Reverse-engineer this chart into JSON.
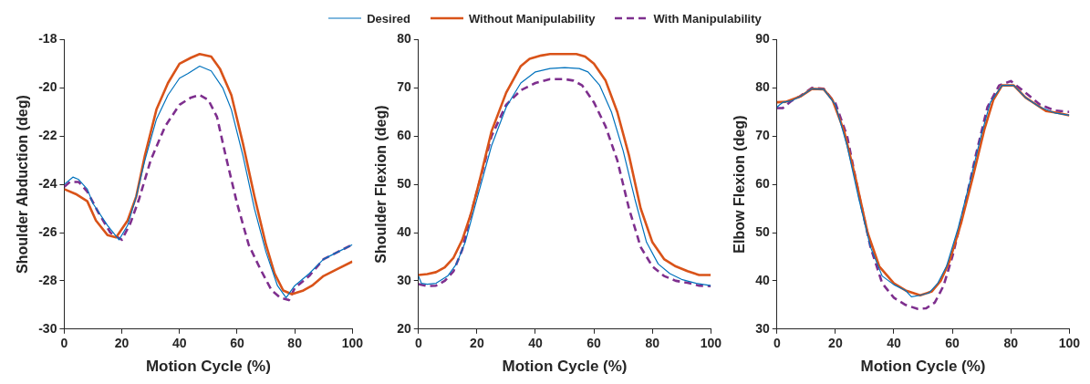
{
  "chart_data": [
    {
      "type": "line",
      "legend": "top",
      "grid": false,
      "xlabel": "Motion Cycle (%)",
      "ylabel": "Shoulder Abduction (deg)",
      "xlim": [
        0,
        100
      ],
      "xticks": [
        0,
        20,
        40,
        60,
        80,
        100
      ],
      "ylim": [
        -30,
        -18
      ],
      "yticks": [
        -30,
        -28,
        -26,
        -24,
        -22,
        -20,
        -18
      ],
      "series": [
        {
          "name": "Desired",
          "color": "#0072bd",
          "line_style": "solid",
          "x": [
            0,
            3,
            5,
            8,
            10,
            15,
            19,
            22,
            25,
            28,
            32,
            36,
            40,
            43,
            47,
            51,
            55,
            58,
            62,
            66,
            70,
            74,
            77,
            80,
            85,
            90,
            95,
            100
          ],
          "values": [
            -24.0,
            -23.7,
            -23.8,
            -24.2,
            -24.8,
            -25.7,
            -26.3,
            -25.7,
            -24.5,
            -23.0,
            -21.3,
            -20.3,
            -19.6,
            -19.4,
            -19.1,
            -19.3,
            -20.0,
            -20.9,
            -22.8,
            -25.0,
            -26.8,
            -28.2,
            -28.7,
            -28.2,
            -27.7,
            -27.1,
            -26.8,
            -26.5
          ]
        },
        {
          "name": "Without Manipulability",
          "color": "#d95319",
          "line_style": "solid",
          "x": [
            0,
            4,
            8,
            11,
            15,
            18,
            22,
            25,
            28,
            32,
            36,
            40,
            44,
            47,
            51,
            54,
            58,
            62,
            66,
            70,
            73,
            76,
            79,
            83,
            86,
            90,
            95,
            100
          ],
          "values": [
            -24.2,
            -24.4,
            -24.7,
            -25.5,
            -26.1,
            -26.2,
            -25.5,
            -24.5,
            -22.8,
            -20.9,
            -19.8,
            -19.0,
            -18.75,
            -18.6,
            -18.7,
            -19.2,
            -20.3,
            -22.3,
            -24.5,
            -26.5,
            -27.7,
            -28.4,
            -28.55,
            -28.4,
            -28.2,
            -27.8,
            -27.5,
            -27.2
          ]
        },
        {
          "name": "With Manipulability",
          "color": "#7e2f8e",
          "line_style": "dashed",
          "x": [
            0,
            2,
            5,
            8,
            12,
            16,
            20,
            23,
            26,
            30,
            35,
            40,
            44,
            47,
            50,
            53,
            56,
            60,
            64,
            68,
            72,
            75,
            78,
            80,
            85,
            90,
            95,
            100
          ],
          "values": [
            -24.1,
            -23.9,
            -23.9,
            -24.3,
            -25.2,
            -26.0,
            -26.3,
            -25.6,
            -24.6,
            -23.0,
            -21.6,
            -20.7,
            -20.4,
            -20.3,
            -20.5,
            -21.2,
            -22.8,
            -24.8,
            -26.5,
            -27.5,
            -28.4,
            -28.7,
            -28.8,
            -28.3,
            -27.8,
            -27.1,
            -26.8,
            -26.5
          ]
        }
      ]
    },
    {
      "type": "line",
      "grid": false,
      "xlabel": "Motion Cycle (%)",
      "ylabel": "Shoulder Flexion (deg)",
      "xlim": [
        0,
        100
      ],
      "xticks": [
        0,
        20,
        40,
        60,
        80,
        100
      ],
      "ylim": [
        20,
        80
      ],
      "yticks": [
        20,
        30,
        40,
        50,
        60,
        70,
        80
      ],
      "series": [
        {
          "color": "#0072bd",
          "line_style": "solid",
          "x": [
            0,
            1,
            3,
            6,
            10,
            13,
            16,
            20,
            25,
            30,
            35,
            40,
            45,
            50,
            55,
            58,
            62,
            66,
            70,
            74,
            78,
            82,
            86,
            90,
            95,
            100
          ],
          "values": [
            31.0,
            29.5,
            29.3,
            29.5,
            31.0,
            33.5,
            38,
            47,
            58,
            66,
            71,
            73.3,
            74,
            74.2,
            74,
            73.3,
            70.5,
            65,
            57,
            47,
            38,
            33.5,
            31.5,
            30.3,
            29.5,
            29.0
          ]
        },
        {
          "color": "#d95319",
          "line_style": "solid",
          "x": [
            0,
            3,
            6,
            9,
            12,
            15,
            18,
            21,
            25,
            30,
            35,
            38,
            42,
            45,
            50,
            54,
            57,
            60,
            64,
            68,
            72,
            76,
            80,
            84,
            88,
            92,
            96,
            100
          ],
          "values": [
            31.2,
            31.4,
            31.8,
            32.8,
            34.8,
            38.5,
            44,
            51,
            61,
            69,
            74.5,
            76,
            76.7,
            77,
            77,
            77,
            76.5,
            75,
            71.5,
            65,
            56,
            45,
            38,
            34.5,
            33,
            32,
            31.2,
            31.2
          ]
        },
        {
          "color": "#7e2f8e",
          "line_style": "dashed",
          "x": [
            0,
            3,
            6,
            9,
            12,
            15,
            18,
            22,
            25,
            30,
            35,
            40,
            45,
            50,
            53,
            56,
            60,
            64,
            68,
            72,
            76,
            80,
            84,
            88,
            92,
            96,
            100
          ],
          "values": [
            29.3,
            28.9,
            29,
            30,
            32,
            36.5,
            44,
            53,
            60,
            66.5,
            69.5,
            71,
            71.8,
            71.8,
            71.5,
            70.5,
            67,
            62,
            55,
            45,
            37,
            33,
            31,
            30,
            29.6,
            29,
            28.9
          ]
        }
      ]
    },
    {
      "type": "line",
      "grid": false,
      "xlabel": "Motion Cycle (%)",
      "ylabel": "Elbow Flexion (deg)",
      "xlim": [
        0,
        100
      ],
      "xticks": [
        0,
        20,
        40,
        60,
        80,
        100
      ],
      "ylim": [
        30,
        90
      ],
      "yticks": [
        30,
        40,
        50,
        60,
        70,
        80,
        90
      ],
      "series": [
        {
          "color": "#0072bd",
          "line_style": "solid",
          "x": [
            0,
            1,
            2,
            5,
            8,
            12,
            16,
            20,
            24,
            28,
            32,
            36,
            40,
            44,
            46,
            49,
            52,
            55,
            58,
            62,
            66,
            70,
            73,
            77,
            81,
            85,
            90,
            95,
            100
          ],
          "values": [
            76,
            76.5,
            77,
            77.3,
            78.2,
            79.8,
            79.7,
            76.5,
            68,
            57,
            47,
            41,
            39.2,
            38,
            36.7,
            37,
            37.5,
            39.5,
            43,
            51,
            60.5,
            70.5,
            77,
            80.5,
            80.5,
            78,
            76,
            74.8,
            74.3
          ]
        },
        {
          "color": "#d95319",
          "line_style": "solid",
          "x": [
            0,
            3,
            8,
            12,
            16,
            19,
            23,
            27,
            31,
            35,
            40,
            44,
            49,
            53,
            56,
            59,
            63,
            67,
            71,
            74,
            77,
            81,
            85,
            88,
            92,
            96,
            100
          ],
          "values": [
            77,
            77.1,
            78.2,
            79.8,
            79.7,
            77.5,
            71,
            61,
            50,
            43,
            39.5,
            38,
            37,
            37.8,
            40,
            44,
            52,
            61.5,
            71.5,
            77.5,
            80.5,
            80.5,
            78,
            76.8,
            75.2,
            74.8,
            74.3
          ]
        },
        {
          "color": "#7e2f8e",
          "line_style": "dashed",
          "x": [
            0,
            2,
            5,
            8,
            12,
            16,
            20,
            24,
            28,
            32,
            36,
            40,
            44,
            48,
            51,
            54,
            57,
            60,
            64,
            68,
            72,
            76,
            80,
            85,
            90,
            95,
            100
          ],
          "values": [
            75.8,
            75.8,
            77.3,
            78.3,
            80,
            79.8,
            76.8,
            70,
            58,
            47,
            39.5,
            36.5,
            35,
            34.2,
            34.3,
            35.5,
            39,
            45,
            55,
            66,
            76,
            80.5,
            81.4,
            79,
            76.5,
            75.3,
            75
          ]
        }
      ]
    }
  ]
}
